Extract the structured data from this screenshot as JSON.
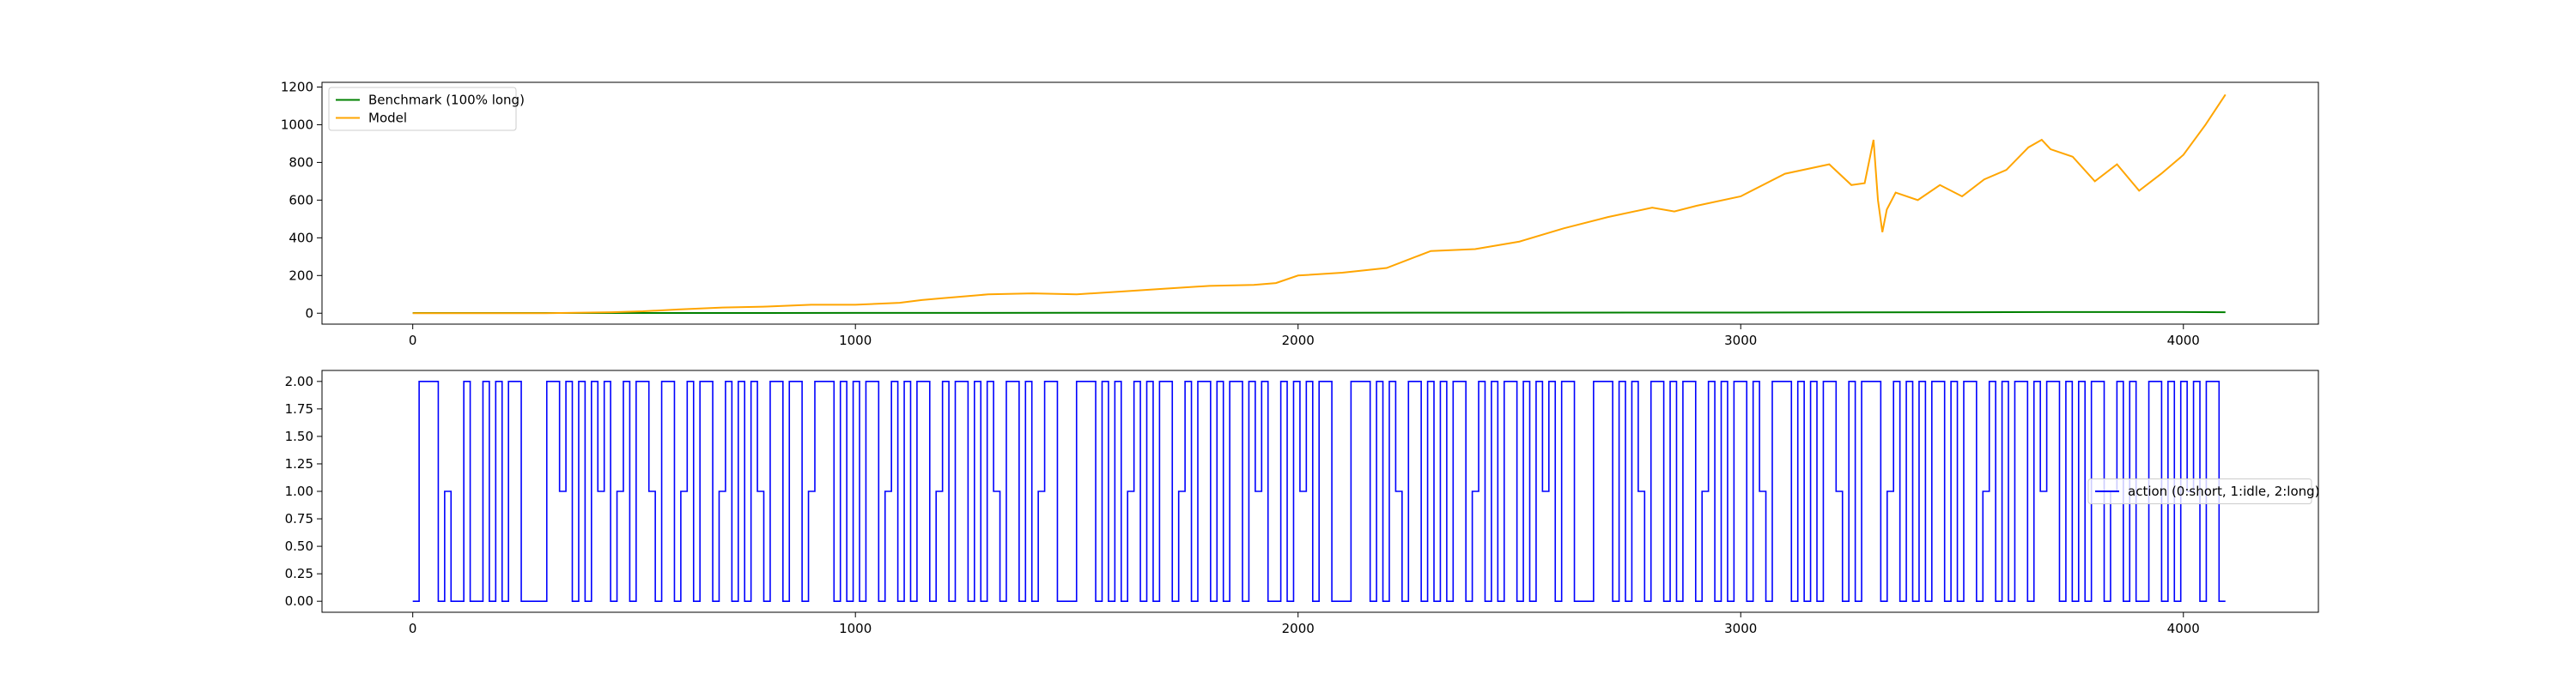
{
  "chart_data": [
    {
      "type": "line",
      "title": "",
      "xlabel": "",
      "ylabel": "",
      "xlim": [
        -205,
        4305
      ],
      "ylim": [
        -58,
        1225
      ],
      "xticks": [
        0,
        1000,
        2000,
        3000,
        4000
      ],
      "yticks": [
        0,
        200,
        400,
        600,
        800,
        1000,
        1200
      ],
      "legend_position": "upper-left",
      "grid": false,
      "series": [
        {
          "name": "Benchmark (100% long)",
          "color": "#008000",
          "x": [
            0,
            500,
            1000,
            1500,
            2000,
            2500,
            3000,
            3500,
            3700,
            4000,
            4095
          ],
          "y": [
            1,
            1,
            1.5,
            2,
            2.5,
            3,
            3.5,
            5,
            6,
            6,
            5
          ]
        },
        {
          "name": "Model",
          "color": "#ffa500",
          "x": [
            0,
            300,
            450,
            520,
            600,
            700,
            800,
            900,
            1000,
            1100,
            1150,
            1200,
            1300,
            1400,
            1500,
            1600,
            1700,
            1800,
            1900,
            1950,
            2000,
            2100,
            2200,
            2300,
            2400,
            2500,
            2600,
            2700,
            2800,
            2850,
            2900,
            3000,
            3100,
            3200,
            3250,
            3280,
            3300,
            3310,
            3320,
            3330,
            3350,
            3400,
            3450,
            3500,
            3550,
            3600,
            3650,
            3680,
            3700,
            3750,
            3800,
            3850,
            3900,
            3950,
            4000,
            4050,
            4095
          ],
          "y": [
            0,
            0,
            5,
            10,
            20,
            30,
            35,
            45,
            45,
            55,
            70,
            80,
            100,
            105,
            100,
            115,
            130,
            145,
            150,
            160,
            200,
            215,
            240,
            330,
            340,
            380,
            450,
            510,
            560,
            540,
            570,
            620,
            740,
            790,
            680,
            690,
            920,
            600,
            430,
            550,
            640,
            600,
            680,
            620,
            710,
            760,
            880,
            920,
            870,
            830,
            700,
            790,
            650,
            740,
            840,
            1000,
            1160
          ]
        }
      ]
    },
    {
      "type": "line",
      "title": "",
      "xlabel": "",
      "ylabel": "",
      "xlim": [
        -205,
        4305
      ],
      "ylim": [
        -0.1,
        2.1
      ],
      "xticks": [
        0,
        1000,
        2000,
        3000,
        4000
      ],
      "yticks": [
        0.0,
        0.25,
        0.5,
        0.75,
        1.0,
        1.25,
        1.5,
        1.75,
        2.0
      ],
      "ytick_labels": [
        "0.00",
        "0.25",
        "0.50",
        "0.75",
        "1.00",
        "1.25",
        "1.50",
        "1.75",
        "2.00"
      ],
      "legend_position": "center-right",
      "grid": false,
      "series": [
        {
          "name": "action (0:short, 1:idle, 2:long)",
          "color": "#0000ff",
          "drawstyle": "steps",
          "x_start": 0,
          "x_end": 4095,
          "values": [
            0,
            2,
            2,
            2,
            0,
            1,
            0,
            0,
            2,
            0,
            0,
            2,
            0,
            2,
            0,
            2,
            2,
            0,
            0,
            0,
            0,
            2,
            2,
            1,
            2,
            0,
            2,
            0,
            2,
            1,
            2,
            0,
            1,
            2,
            0,
            2,
            2,
            1,
            0,
            2,
            2,
            0,
            1,
            2,
            0,
            2,
            2,
            0,
            1,
            2,
            0,
            2,
            0,
            2,
            1,
            0,
            2,
            2,
            0,
            2,
            2,
            0,
            1,
            2,
            2,
            2,
            0,
            2,
            0,
            2,
            0,
            2,
            2,
            0,
            1,
            2,
            0,
            2,
            0,
            2,
            2,
            0,
            1,
            2,
            0,
            2,
            2,
            0,
            2,
            0,
            2,
            1,
            0,
            2,
            2,
            0,
            2,
            0,
            1,
            2,
            2,
            0,
            0,
            0,
            2,
            2,
            2,
            0,
            2,
            0,
            2,
            0,
            1,
            2,
            0,
            2,
            0,
            2,
            2,
            0,
            1,
            2,
            0,
            2,
            2,
            0,
            2,
            0,
            2,
            2,
            0,
            2,
            1,
            2,
            0,
            0,
            2,
            0,
            2,
            1,
            2,
            0,
            2,
            2,
            0,
            0,
            0,
            2,
            2,
            2,
            0,
            2,
            0,
            2,
            1,
            0,
            2,
            2,
            0,
            2,
            0,
            2,
            0,
            2,
            2,
            0,
            1,
            2,
            0,
            2,
            0,
            2,
            2,
            0,
            2,
            0,
            2,
            1,
            2,
            0,
            2,
            2,
            0,
            0,
            0,
            2,
            2,
            2,
            0,
            2,
            0,
            2,
            1,
            0,
            2,
            2,
            0,
            2,
            0,
            2,
            2,
            0,
            1,
            2,
            0,
            2,
            0,
            2,
            2,
            0,
            2,
            1,
            0,
            2,
            2,
            2,
            0,
            2,
            0,
            2,
            0,
            2,
            2,
            1,
            0,
            2,
            0,
            2,
            2,
            2,
            0,
            1,
            2,
            0,
            2,
            0,
            2,
            0,
            2,
            2,
            0,
            2,
            0,
            2,
            2,
            0,
            1,
            2,
            0,
            2,
            0,
            2,
            2,
            0,
            2,
            1,
            2,
            2,
            0,
            2,
            0,
            2,
            0,
            2,
            2,
            0,
            1,
            2,
            0,
            2,
            0,
            0,
            2,
            2,
            0,
            2,
            0,
            2,
            1,
            2,
            0,
            2,
            2,
            0,
            0
          ]
        }
      ]
    }
  ]
}
